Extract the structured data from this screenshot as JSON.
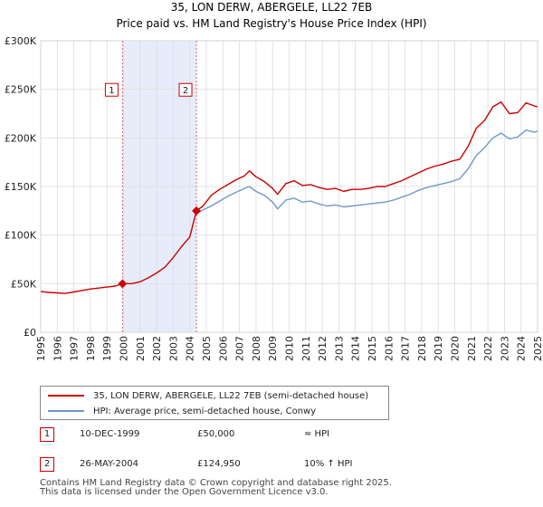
{
  "chart_data": {
    "type": "line",
    "title": "35, LON DERW, ABERGELE, LL22 7EB",
    "subtitle": "Price paid vs. HM Land Registry's House Price Index (HPI)",
    "xlim": [
      1995,
      2025
    ],
    "ylim": [
      0,
      300000
    ],
    "x_ticks": [
      "1995",
      "1996",
      "1997",
      "1998",
      "1999",
      "2000",
      "2001",
      "2002",
      "2003",
      "2004",
      "2005",
      "2006",
      "2007",
      "2008",
      "2009",
      "2010",
      "2011",
      "2012",
      "2013",
      "2014",
      "2015",
      "2016",
      "2017",
      "2018",
      "2019",
      "2020",
      "2021",
      "2022",
      "2023",
      "2024",
      "2025"
    ],
    "y_ticks": [
      {
        "value": 0,
        "label": "£0"
      },
      {
        "value": 50000,
        "label": "£50K"
      },
      {
        "value": 100000,
        "label": "£100K"
      },
      {
        "value": 150000,
        "label": "£150K"
      },
      {
        "value": 200000,
        "label": "£200K"
      },
      {
        "value": 250000,
        "label": "£250K"
      },
      {
        "value": 300000,
        "label": "£300K"
      }
    ],
    "grid": true,
    "shaded_range": [
      1999.94,
      2004.4
    ],
    "series": [
      {
        "name": "35, LON DERW, ABERGELE, LL22 7EB (semi-detached house)",
        "color": "#cc0000",
        "x": [
          1995,
          1995.5,
          1996,
          1996.5,
          1997,
          1997.5,
          1998,
          1998.5,
          1999,
          1999.5,
          1999.94,
          2000.5,
          2001,
          2001.5,
          2002,
          2002.5,
          2003,
          2003.5,
          2004,
          2004.4,
          2004.8,
          2005.3,
          2005.8,
          2006.3,
          2006.8,
          2007.3,
          2007.6,
          2008,
          2008.5,
          2009,
          2009.3,
          2009.8,
          2010.3,
          2010.8,
          2011.3,
          2011.8,
          2012.3,
          2012.8,
          2013.3,
          2013.8,
          2014.3,
          2014.8,
          2015.3,
          2015.8,
          2016.3,
          2016.8,
          2017.3,
          2017.8,
          2018.3,
          2018.8,
          2019.3,
          2019.8,
          2020.3,
          2020.8,
          2021.3,
          2021.8,
          2022.3,
          2022.8,
          2023.3,
          2023.8,
          2024.3,
          2024.8,
          2025
        ],
        "values": [
          42000,
          41000,
          40500,
          40000,
          41500,
          43000,
          44500,
          45500,
          46500,
          47500,
          50000,
          50000,
          52000,
          56000,
          61000,
          67000,
          77000,
          88000,
          98000,
          124950,
          130000,
          141000,
          147000,
          152000,
          157000,
          161000,
          166000,
          160000,
          155000,
          148000,
          142000,
          153000,
          156000,
          151000,
          152000,
          149000,
          147000,
          148000,
          145000,
          147000,
          147000,
          148000,
          150000,
          150000,
          153000,
          156000,
          160000,
          164000,
          168000,
          171000,
          173000,
          176000,
          178000,
          191000,
          210000,
          218000,
          232000,
          237000,
          225000,
          226000,
          236000,
          233000,
          232000
        ]
      },
      {
        "name": "HPI: Average price, semi-detached house, Conwy",
        "color": "#6f98cc",
        "x": [
          2004.4,
          2004.8,
          2005.3,
          2005.8,
          2006.3,
          2006.8,
          2007.3,
          2007.6,
          2008,
          2008.5,
          2009,
          2009.3,
          2009.8,
          2010.3,
          2010.8,
          2011.3,
          2011.8,
          2012.3,
          2012.8,
          2013.3,
          2013.8,
          2014.3,
          2014.8,
          2015.3,
          2015.8,
          2016.3,
          2016.8,
          2017.3,
          2017.8,
          2018.3,
          2018.8,
          2019.3,
          2019.8,
          2020.3,
          2020.8,
          2021.3,
          2021.8,
          2022.3,
          2022.8,
          2023.3,
          2023.8,
          2024.3,
          2024.8,
          2025
        ],
        "values": [
          122000,
          126000,
          130000,
          135000,
          140000,
          144000,
          148000,
          150000,
          145000,
          141000,
          134000,
          127000,
          136000,
          138000,
          134000,
          135000,
          132000,
          130000,
          131000,
          129000,
          130000,
          131000,
          132000,
          133000,
          134000,
          136000,
          139000,
          142000,
          146000,
          149000,
          151000,
          153000,
          155000,
          158000,
          168000,
          182000,
          190000,
          200000,
          205000,
          199000,
          201000,
          208000,
          206000,
          207000
        ]
      }
    ],
    "markers": [
      {
        "label": "1",
        "x": 1999.94,
        "y": 50000
      },
      {
        "label": "2",
        "x": 2004.4,
        "y": 124950
      }
    ]
  },
  "legend": {
    "red_label": "35, LON DERW, ABERGELE, LL22 7EB (semi-detached house)",
    "blue_label": "HPI: Average price, semi-detached house, Conwy"
  },
  "transactions": [
    {
      "badge": "1",
      "date": "10-DEC-1999",
      "price": "£50,000",
      "hpi": "≈ HPI"
    },
    {
      "badge": "2",
      "date": "26-MAY-2004",
      "price": "£124,950",
      "hpi": "10% ↑ HPI"
    }
  ],
  "footer": {
    "line1": "Contains HM Land Registry data © Crown copyright and database right 2025.",
    "line2": "This data is licensed under the Open Government Licence v3.0."
  }
}
